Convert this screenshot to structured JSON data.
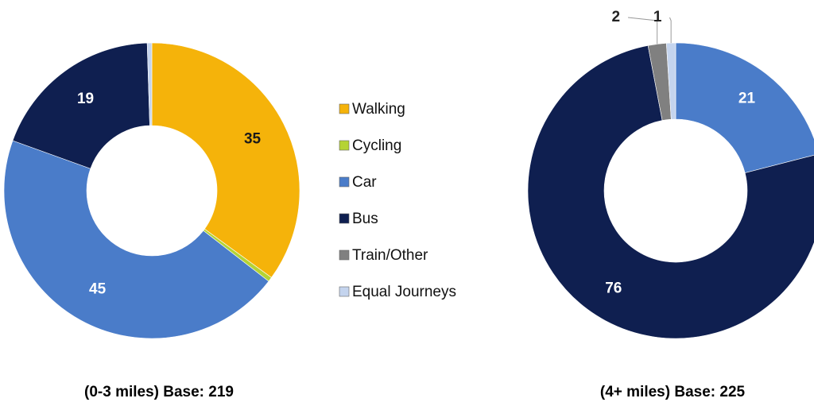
{
  "chart_data": [
    {
      "type": "pie",
      "donut": true,
      "title": "(0-3 miles) Base: 219",
      "categories": [
        "Walking",
        "Cycling",
        "Car",
        "Bus",
        "Train/Other",
        "Equal Journeys"
      ],
      "values": [
        35,
        0.5,
        45,
        19,
        0,
        0.5
      ],
      "colors": [
        "#f5b30a",
        "#b5d334",
        "#4a7cc9",
        "#0f1f50",
        "#808080",
        "#c4d4ee"
      ]
    },
    {
      "type": "pie",
      "donut": true,
      "title": "(4+ miles) Base: 225",
      "categories": [
        "Walking",
        "Cycling",
        "Car",
        "Bus",
        "Train/Other",
        "Equal Journeys"
      ],
      "values": [
        0,
        0,
        21,
        76,
        2,
        1
      ],
      "colors": [
        "#f5b30a",
        "#b5d334",
        "#4a7cc9",
        "#0f1f50",
        "#808080",
        "#c4d4ee"
      ]
    }
  ]
}
